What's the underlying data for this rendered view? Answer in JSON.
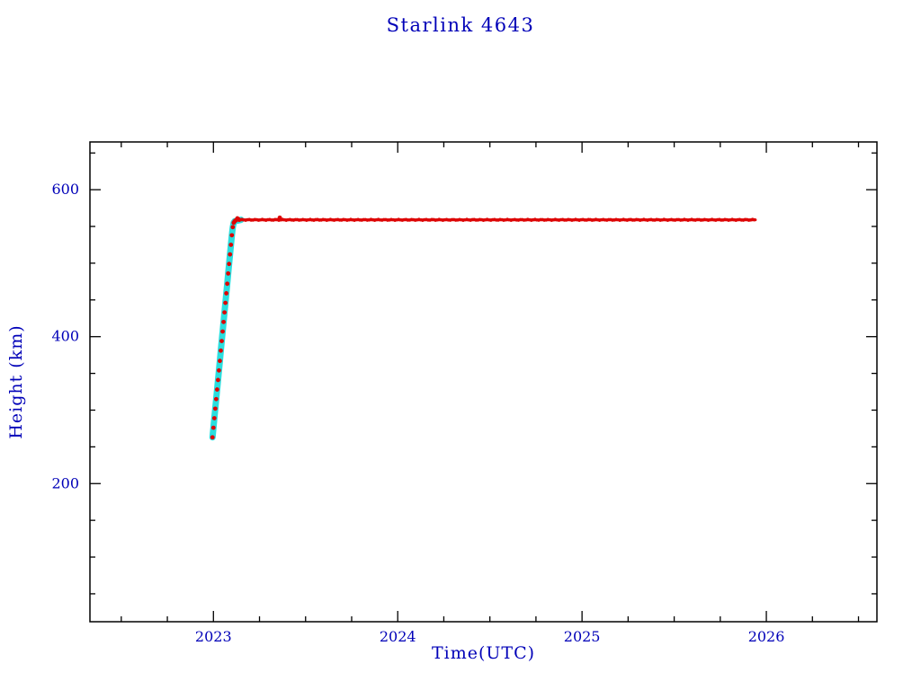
{
  "window": {
    "background_color": "#ffffff"
  },
  "chart_data": {
    "type": "scatter",
    "title": "Starlink 4643",
    "xlabel": "Time(UTC)",
    "ylabel": "Height (km)",
    "xlim": [
      2022.33,
      2026.6
    ],
    "ylim": [
      12,
      665
    ],
    "xticks": [
      2023,
      2024,
      2025,
      2026
    ],
    "yticks": [
      200,
      400,
      600
    ],
    "x_minor_step": 0.25,
    "y_minor_step": 50,
    "grid": false,
    "legend": "none",
    "frame_color": "#000000",
    "label_color": "#0000b8",
    "series": [
      {
        "name": "planned-trajectory",
        "type": "line",
        "color": "#2adede",
        "line_width": 7,
        "points": [
          [
            2022.995,
            263
          ],
          [
            2023.0,
            276
          ],
          [
            2023.005,
            289
          ],
          [
            2023.01,
            302
          ],
          [
            2023.015,
            315
          ],
          [
            2023.02,
            328
          ],
          [
            2023.025,
            341
          ],
          [
            2023.03,
            354
          ],
          [
            2023.035,
            367
          ],
          [
            2023.04,
            381
          ],
          [
            2023.045,
            394
          ],
          [
            2023.05,
            407
          ],
          [
            2023.055,
            420
          ],
          [
            2023.06,
            433
          ],
          [
            2023.065,
            446
          ],
          [
            2023.07,
            459
          ],
          [
            2023.075,
            472
          ],
          [
            2023.08,
            486
          ],
          [
            2023.085,
            499
          ],
          [
            2023.09,
            512
          ],
          [
            2023.095,
            525
          ],
          [
            2023.1,
            538
          ],
          [
            2023.105,
            549
          ],
          [
            2023.11,
            555
          ],
          [
            2023.115,
            557
          ],
          [
            2023.15,
            559
          ]
        ]
      },
      {
        "name": "observed-height",
        "type": "scatter",
        "color": "#dd0505",
        "marker_size": 2.4,
        "points": [
          [
            2022.995,
            263
          ],
          [
            2023.0,
            276
          ],
          [
            2023.005,
            289
          ],
          [
            2023.01,
            302
          ],
          [
            2023.015,
            315
          ],
          [
            2023.02,
            328
          ],
          [
            2023.025,
            341
          ],
          [
            2023.03,
            354
          ],
          [
            2023.035,
            367
          ],
          [
            2023.04,
            381
          ],
          [
            2023.045,
            394
          ],
          [
            2023.05,
            407
          ],
          [
            2023.055,
            420
          ],
          [
            2023.06,
            433
          ],
          [
            2023.065,
            446
          ],
          [
            2023.07,
            459
          ],
          [
            2023.075,
            472
          ],
          [
            2023.08,
            486
          ],
          [
            2023.085,
            499
          ],
          [
            2023.09,
            512
          ],
          [
            2023.095,
            525
          ],
          [
            2023.1,
            538
          ],
          [
            2023.105,
            549
          ],
          [
            2023.11,
            555
          ],
          [
            2023.115,
            557
          ],
          [
            2023.12,
            558
          ],
          [
            2023.125,
            559
          ],
          [
            2023.13,
            561
          ],
          [
            2023.135,
            560
          ],
          [
            2023.14,
            559
          ],
          [
            2023.36,
            562
          ]
        ],
        "plateau": {
          "x_start": 2023.145,
          "x_end": 2025.94,
          "y": 559,
          "step": 0.01,
          "jitter": 0.7
        }
      }
    ]
  }
}
